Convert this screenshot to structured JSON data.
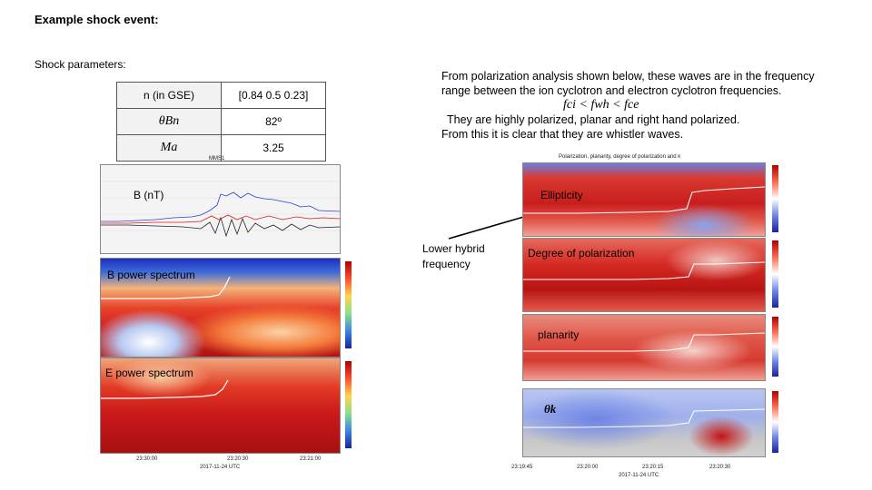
{
  "slide": {
    "title": "Example shock event:",
    "shock_params_title": "Shock parameters:",
    "table": [
      {
        "param": "n (in GSE)",
        "value": "[0.84 0.5 0.23]"
      },
      {
        "param": "θBn",
        "value": "82º"
      },
      {
        "param": "Ma",
        "value": "3.25"
      }
    ],
    "note_lines": [
      "From polarization analysis shown below, these waves are in the frequency",
      "range between the ion cyclotron and electron cyclotron frequencies.",
      "fci < fwh < fce",
      "They are highly polarized, planar and right hand polarized.",
      "From this it is clear that they are whistler waves."
    ]
  },
  "left_figure": {
    "top_label": "MMS1",
    "panels": {
      "b": "B (nT)",
      "b_power": "B power spectrum",
      "e_power": "E power spectrum"
    },
    "x_ticks": [
      "23:30:00",
      "23:20:30",
      "23:21:00"
    ],
    "x_label": "2017-11-24 UTC"
  },
  "right_figure": {
    "title": "Polarization, planarity, degree of polarization and k",
    "panels": {
      "ellipticity": "Ellipticity",
      "dop": "Degree of polarization",
      "planarity": "planarity",
      "thetak": "θk"
    },
    "x_ticks": [
      "23:19:45",
      "23:20:00",
      "23:20:15",
      "23:20:30"
    ],
    "x_label": "2017-11-24 UTC"
  },
  "arrow_label": "Lower hybrid frequency",
  "colors": {
    "red": "#d7191c",
    "blue": "#2c3dd8",
    "grey": "#b8b8b8",
    "white": "#ffffff"
  }
}
